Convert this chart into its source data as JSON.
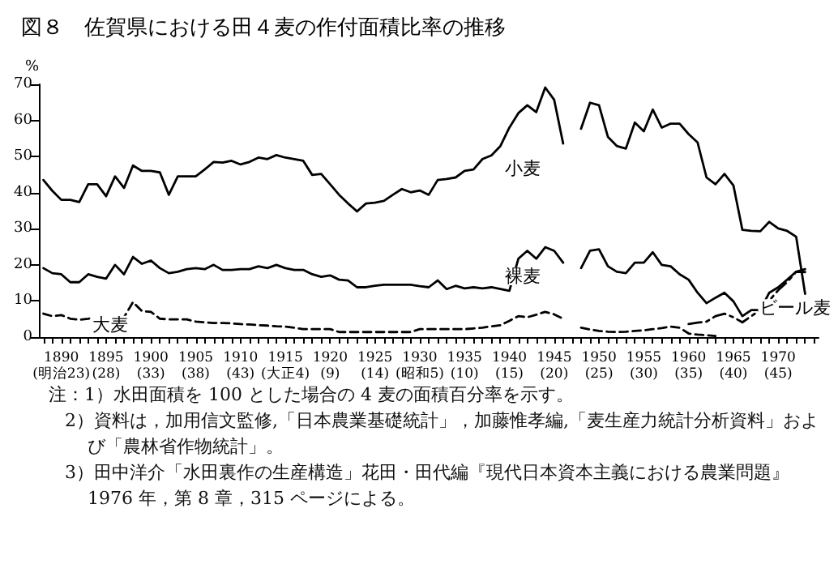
{
  "chart_data": {
    "type": "line",
    "title": "図８　佐賀県における田４麦の作付面積比率の推移",
    "ylabel": "%",
    "ylim": [
      0,
      70
    ],
    "yticks": [
      0,
      10,
      20,
      30,
      40,
      50,
      60,
      70
    ],
    "categories": [
      null,
      null,
      "1890\n(明治23)",
      null,
      null,
      null,
      null,
      "1895\n(28)",
      null,
      null,
      null,
      null,
      "1900\n(33)",
      null,
      null,
      null,
      null,
      "1905\n(38)",
      null,
      null,
      null,
      null,
      "1910\n(43)",
      null,
      null,
      null,
      null,
      "1915\n(大正4)",
      null,
      null,
      null,
      null,
      "1920\n(9)",
      null,
      null,
      null,
      null,
      "1925\n(14)",
      null,
      null,
      null,
      null,
      "1930\n(昭和5)",
      null,
      null,
      null,
      null,
      "1935\n(10)",
      null,
      null,
      null,
      null,
      "1940\n(15)",
      null,
      null,
      null,
      null,
      "1945\n(20)",
      null,
      null,
      null,
      null,
      "1950\n(25)",
      null,
      null,
      null,
      null,
      "1955\n(30)",
      null,
      null,
      null,
      null,
      "1960\n(35)",
      null,
      null,
      null,
      null,
      "1965\n(40)",
      null,
      null,
      null,
      null,
      "1970\n(45)",
      null,
      null,
      null,
      null
    ],
    "series": [
      {
        "name": "小麦",
        "color": "#000000",
        "line_style": "solid",
        "values": [
          43.5,
          40.5,
          38,
          38,
          37.4,
          42.3,
          42.3,
          39,
          44.5,
          41.3,
          47.5,
          46,
          46,
          45.6,
          39.4,
          44.5,
          44.5,
          44.5,
          46.4,
          48.5,
          48.3,
          48.8,
          47.8,
          48.5,
          49.7,
          49.3,
          50.4,
          49.7,
          49.3,
          48.8,
          44.9,
          45.2,
          42.3,
          39.4,
          37,
          34.8,
          37,
          37.2,
          37.7,
          39.4,
          41,
          40.1,
          40.6,
          39.4,
          43.5,
          43.8,
          44.2,
          46,
          46.4,
          49.3,
          50.3,
          52.9,
          58,
          62,
          64.2,
          62.3,
          69.1,
          65.7,
          53.6,
          null,
          57.7,
          64.9,
          64.2,
          55.4,
          52.9,
          52.2,
          59.4,
          57,
          63,
          58,
          59.1,
          59.1,
          56.2,
          53.9,
          44.2,
          42.3,
          45.2,
          42,
          29.7,
          29.4,
          29.3,
          31.9,
          30.1,
          29.4,
          27.8,
          12,
          null
        ]
      },
      {
        "name": "裸麦",
        "color": "#000000",
        "line_style": "solid",
        "values": [
          19.1,
          17.7,
          17.4,
          15.2,
          15.2,
          17.4,
          16.7,
          16.2,
          20,
          17.4,
          22.2,
          20.3,
          21.2,
          19.1,
          17.7,
          18.1,
          18.8,
          19.1,
          18.8,
          20,
          18.6,
          18.6,
          18.8,
          18.8,
          19.6,
          19.1,
          20,
          19.1,
          18.6,
          18.6,
          17.4,
          16.7,
          17.1,
          15.9,
          15.7,
          13.8,
          13.8,
          14.2,
          14.5,
          14.5,
          14.5,
          14.5,
          14.1,
          13.8,
          15.7,
          13.3,
          14.2,
          13.5,
          13.8,
          13.5,
          13.8,
          13.3,
          12.8,
          21.7,
          23.9,
          21.7,
          24.9,
          23.9,
          20.6,
          null,
          19.1,
          23.9,
          24.3,
          19.6,
          18.1,
          17.7,
          20.6,
          20.6,
          23.5,
          20,
          19.6,
          17.4,
          15.9,
          12.3,
          9.4,
          10.9,
          12.3,
          9.9,
          5.8,
          7.5,
          7.5,
          12.3,
          13.8,
          15.9,
          18.1,
          18,
          null
        ]
      },
      {
        "name": "大麦",
        "color": "#000000",
        "line_style": "dashed",
        "values": [
          6.5,
          5.8,
          6.1,
          5.1,
          4.8,
          5.1,
          5.5,
          5.4,
          5.1,
          5.5,
          9.7,
          7.2,
          7,
          5.1,
          4.9,
          4.9,
          4.9,
          4.3,
          4.1,
          3.9,
          3.9,
          3.8,
          3.6,
          3.5,
          3.3,
          3.2,
          3.0,
          2.9,
          2.6,
          2.2,
          2.2,
          2.2,
          2.2,
          1.4,
          1.4,
          1.4,
          1.4,
          1.4,
          1.4,
          1.4,
          1.4,
          1.4,
          2.2,
          2.2,
          2.2,
          2.2,
          2.2,
          2.2,
          2.4,
          2.6,
          3.0,
          3.3,
          4.5,
          5.8,
          5.5,
          6.2,
          7,
          6.3,
          5.1,
          null,
          2.6,
          2.1,
          1.7,
          1.5,
          1.4,
          1.5,
          1.7,
          1.9,
          2.2,
          2.5,
          2.9,
          2.6,
          1,
          0.7,
          0.5,
          0.3,
          null,
          null,
          null,
          null,
          null,
          null,
          null,
          null,
          null,
          null,
          null
        ]
      },
      {
        "name": "ビール麦",
        "color": "#000000",
        "line_style": "dashdot",
        "values": [
          null,
          null,
          null,
          null,
          null,
          null,
          null,
          null,
          null,
          null,
          null,
          null,
          null,
          null,
          null,
          null,
          null,
          null,
          null,
          null,
          null,
          null,
          null,
          null,
          null,
          null,
          null,
          null,
          null,
          null,
          null,
          null,
          null,
          null,
          null,
          null,
          null,
          null,
          null,
          null,
          null,
          null,
          null,
          null,
          null,
          null,
          null,
          null,
          null,
          null,
          null,
          null,
          null,
          null,
          null,
          null,
          null,
          null,
          null,
          null,
          null,
          null,
          null,
          null,
          null,
          null,
          null,
          null,
          null,
          null,
          null,
          null,
          3.6,
          4.0,
          4.3,
          5.8,
          6.5,
          5.5,
          4.1,
          5.8,
          7.5,
          10.1,
          13,
          15.2,
          18.1,
          18.8,
          null
        ]
      }
    ],
    "annotations": [
      "注：1）水田面積を 100 とした場合の 4 麦の面積百分率を示す。",
      "2）資料は，加用信文監修,「日本農業基礎統計」，加藤惟孝編,「麦生産力統計分析資料」および「農林省作物統計」。",
      "3）田中洋介「水田裏作の生産構造」花田・田代編『現代日本資本主義における農業問題』1976 年，第 8 章，315 ページによる。"
    ]
  }
}
